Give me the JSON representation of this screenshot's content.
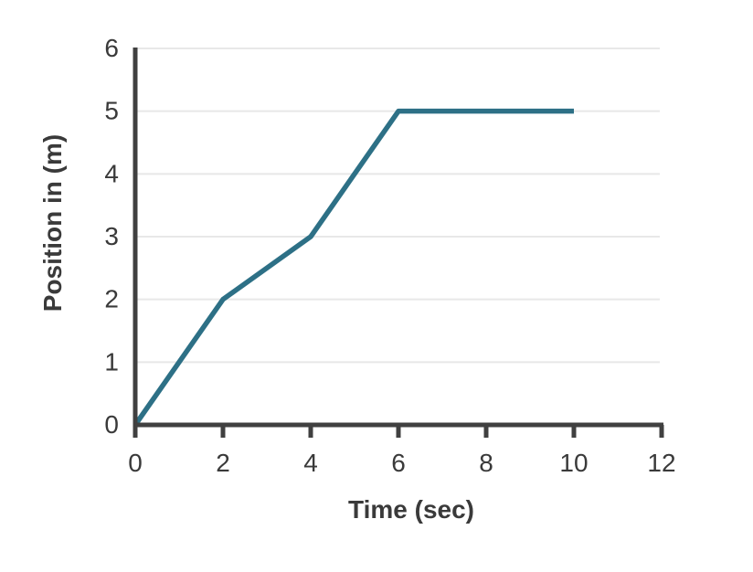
{
  "figure": {
    "background": "#ffffff"
  },
  "chart_data": {
    "type": "line",
    "title": "",
    "xlabel": "Time (sec)",
    "ylabel": "Position in (m)",
    "x_ticks": [
      0,
      2,
      4,
      6,
      8,
      10,
      12
    ],
    "y_ticks": [
      0,
      1,
      2,
      3,
      4,
      5,
      6
    ],
    "xlim": [
      0,
      12
    ],
    "ylim": [
      0,
      6
    ],
    "grid": "horizontal",
    "legend": "none",
    "series": [
      {
        "name": "position",
        "points": [
          [
            0,
            0
          ],
          [
            2,
            2
          ],
          [
            4,
            3
          ],
          [
            6,
            5
          ],
          [
            10,
            5
          ]
        ]
      }
    ],
    "colors": {
      "line": "#2d7086",
      "axis": "#404040",
      "grid": "#e8e8e8",
      "text": "#3a3a3a"
    }
  }
}
